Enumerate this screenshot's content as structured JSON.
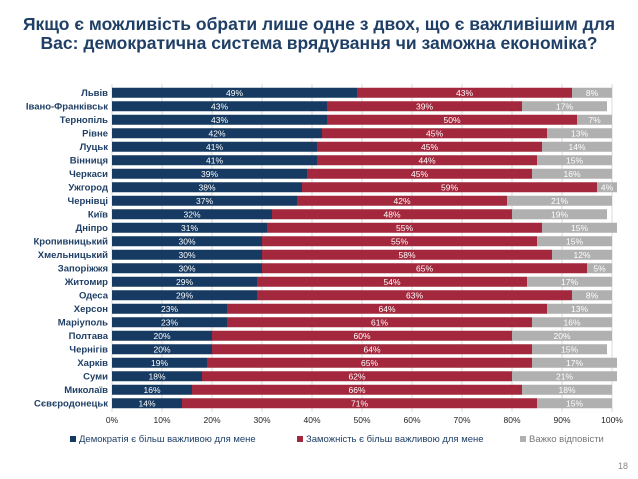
{
  "page": {
    "title": "Якщо є можливість обрати лише одне з двох, що є важливішим для Вас: демократична система врядування чи заможна економіка?",
    "page_number": "18"
  },
  "colors": {
    "series1": "#163a61",
    "series2": "#a4283d",
    "series3": "#b0b0b0",
    "title": "#1f3f66"
  },
  "chart_data": {
    "type": "bar",
    "orientation": "horizontal",
    "stacked": true,
    "categories": [
      "Львів",
      "Івано-Франківськ",
      "Тернопіль",
      "Рівне",
      "Луцьк",
      "Вінниця",
      "Черкаси",
      "Ужгород",
      "Чернівці",
      "Київ",
      "Дніпро",
      "Кропивницький",
      "Хмельницький",
      "Запоріжжя",
      "Житомир",
      "Одеса",
      "Херсон",
      "Маріуполь",
      "Полтава",
      "Чернігів",
      "Харків",
      "Суми",
      "Миколаїв",
      "Сєвєродонецьк"
    ],
    "series": [
      {
        "name": "Демократія є більш важливою для мене",
        "values": [
          49,
          43,
          43,
          42,
          41,
          41,
          39,
          38,
          37,
          32,
          31,
          30,
          30,
          30,
          29,
          29,
          23,
          23,
          20,
          20,
          19,
          18,
          16,
          14
        ]
      },
      {
        "name": "Заможність є більш важливою для мене",
        "values": [
          43,
          39,
          50,
          45,
          45,
          44,
          45,
          59,
          42,
          48,
          55,
          55,
          58,
          65,
          54,
          63,
          64,
          61,
          60,
          64,
          65,
          62,
          66,
          71
        ]
      },
      {
        "name": "Важко відповісти",
        "values": [
          8,
          17,
          7,
          13,
          14,
          15,
          16,
          4,
          21,
          19,
          15,
          15,
          12,
          5,
          17,
          8,
          13,
          16,
          20,
          15,
          17,
          21,
          18,
          15
        ]
      }
    ],
    "xlim": [
      0,
      100
    ],
    "xticks": [
      "0%",
      "10%",
      "20%",
      "30%",
      "40%",
      "50%",
      "60%",
      "70%",
      "80%",
      "90%",
      "100%"
    ],
    "legend_position": "bottom",
    "grid": true
  }
}
